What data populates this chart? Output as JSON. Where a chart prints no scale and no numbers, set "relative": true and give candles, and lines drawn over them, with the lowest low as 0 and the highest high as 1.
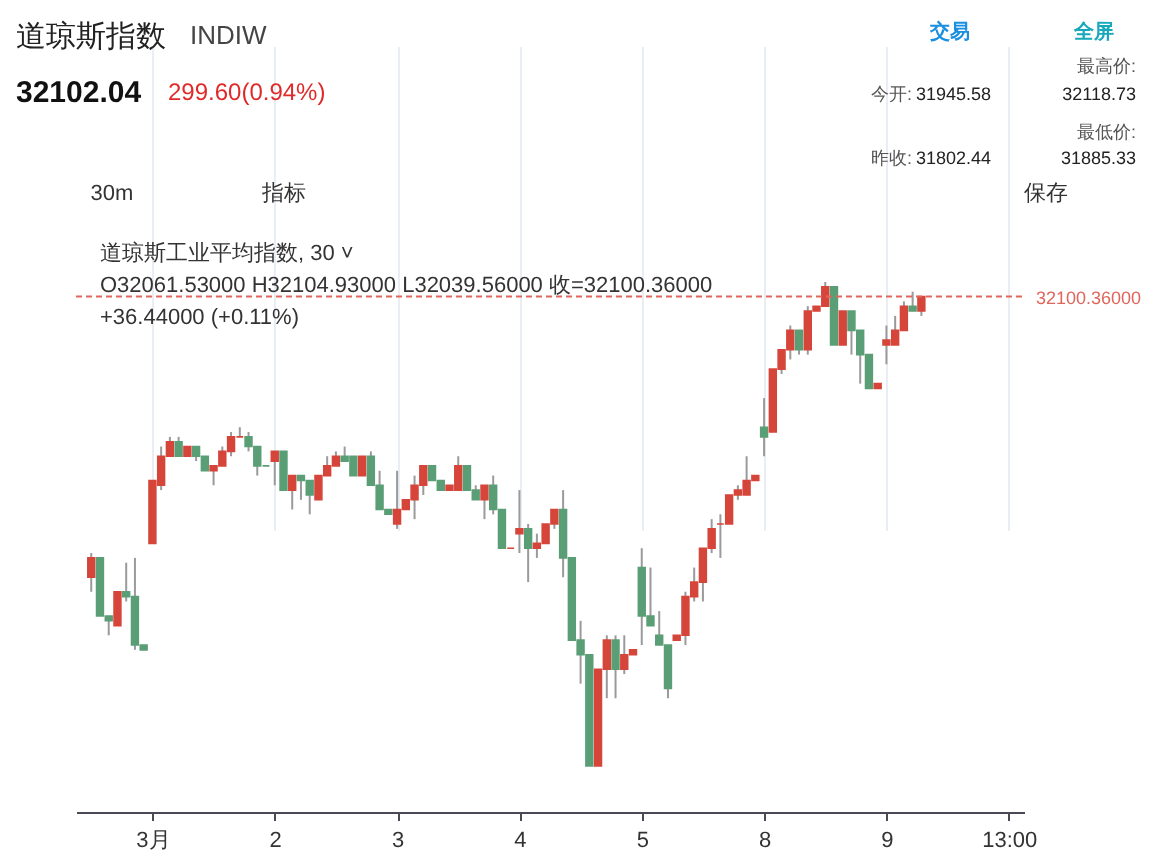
{
  "chart_data": {
    "type": "candlestick",
    "title": "道琼斯指数",
    "subtitle": "INDIW",
    "relative": true,
    "grid": "x",
    "categories": [
      null,
      null,
      null,
      null,
      null,
      null,
      null,
      "3月",
      null,
      null,
      null,
      null,
      null,
      null,
      null,
      null,
      null,
      null,
      null,
      null,
      null,
      "2",
      null,
      null,
      null,
      null,
      null,
      null,
      null,
      null,
      null,
      null,
      null,
      null,
      null,
      "3",
      null,
      null,
      null,
      null,
      null,
      null,
      null,
      null,
      null,
      null,
      null,
      null,
      null,
      "4",
      null,
      null,
      null,
      null,
      null,
      null,
      null,
      null,
      null,
      null,
      null,
      null,
      null,
      "5",
      null,
      null,
      null,
      null,
      null,
      null,
      null,
      null,
      null,
      null,
      null,
      null,
      null,
      "8",
      null,
      null,
      null,
      null,
      null,
      null,
      null,
      null,
      null,
      null,
      null,
      null,
      null,
      "9",
      null,
      null,
      null,
      null,
      null,
      null,
      null,
      null,
      null,
      null,
      null,
      null,
      null,
      "13:00"
    ],
    "ohlc": [
      [
        0.39,
        0.44,
        0.36,
        0.43
      ],
      [
        0.43,
        0.43,
        0.31,
        0.31
      ],
      [
        0.31,
        0.31,
        0.27,
        0.3
      ],
      [
        0.29,
        0.36,
        0.29,
        0.36
      ],
      [
        0.36,
        0.42,
        0.34,
        0.35
      ],
      [
        0.35,
        0.43,
        0.24,
        0.25
      ],
      [
        0.25,
        0.25,
        0.24,
        0.24
      ],
      [
        0.46,
        0.59,
        0.46,
        0.59
      ],
      [
        0.58,
        0.66,
        0.57,
        0.64
      ],
      [
        0.64,
        0.68,
        0.64,
        0.67
      ],
      [
        0.67,
        0.68,
        0.64,
        0.64
      ],
      [
        0.64,
        0.66,
        0.64,
        0.66
      ],
      [
        0.66,
        0.66,
        0.63,
        0.64
      ],
      [
        0.64,
        0.64,
        0.61,
        0.61
      ],
      [
        0.61,
        0.62,
        0.58,
        0.62
      ],
      [
        0.62,
        0.66,
        0.62,
        0.65
      ],
      [
        0.65,
        0.69,
        0.64,
        0.68
      ],
      [
        0.68,
        0.7,
        0.68,
        0.68
      ],
      [
        0.68,
        0.69,
        0.65,
        0.66
      ],
      [
        0.66,
        0.66,
        0.6,
        0.62
      ],
      [
        0.62,
        0.62,
        0.62,
        0.62
      ],
      [
        0.63,
        0.65,
        0.58,
        0.65
      ],
      [
        0.65,
        0.65,
        0.57,
        0.57
      ],
      [
        0.57,
        0.6,
        0.53,
        0.6
      ],
      [
        0.6,
        0.6,
        0.55,
        0.59
      ],
      [
        0.59,
        0.59,
        0.52,
        0.56
      ],
      [
        0.55,
        0.6,
        0.55,
        0.6
      ],
      [
        0.6,
        0.64,
        0.6,
        0.62
      ],
      [
        0.62,
        0.65,
        0.62,
        0.64
      ],
      [
        0.64,
        0.66,
        0.63,
        0.63
      ],
      [
        0.64,
        0.64,
        0.6,
        0.6
      ],
      [
        0.6,
        0.64,
        0.6,
        0.64
      ],
      [
        0.64,
        0.65,
        0.58,
        0.58
      ],
      [
        0.58,
        0.61,
        0.53,
        0.53
      ],
      [
        0.53,
        0.53,
        0.52,
        0.52
      ],
      [
        0.5,
        0.61,
        0.49,
        0.53
      ],
      [
        0.53,
        0.55,
        0.53,
        0.55
      ],
      [
        0.55,
        0.6,
        0.51,
        0.58
      ],
      [
        0.58,
        0.62,
        0.56,
        0.62
      ],
      [
        0.62,
        0.62,
        0.59,
        0.59
      ],
      [
        0.59,
        0.59,
        0.57,
        0.57
      ],
      [
        0.57,
        0.58,
        0.57,
        0.58
      ],
      [
        0.57,
        0.64,
        0.57,
        0.62
      ],
      [
        0.62,
        0.62,
        0.57,
        0.57
      ],
      [
        0.57,
        0.58,
        0.55,
        0.55
      ],
      [
        0.55,
        0.58,
        0.51,
        0.58
      ],
      [
        0.58,
        0.6,
        0.52,
        0.53
      ],
      [
        0.53,
        0.53,
        0.45,
        0.45
      ],
      [
        0.45,
        0.45,
        0.45,
        0.45
      ],
      [
        0.48,
        0.57,
        0.44,
        0.49
      ],
      [
        0.49,
        0.5,
        0.38,
        0.45
      ],
      [
        0.45,
        0.48,
        0.43,
        0.46
      ],
      [
        0.46,
        0.5,
        0.46,
        0.5
      ],
      [
        0.5,
        0.53,
        0.49,
        0.53
      ],
      [
        0.53,
        0.57,
        0.39,
        0.43
      ],
      [
        0.43,
        0.43,
        0.26,
        0.26
      ],
      [
        0.26,
        0.3,
        0.17,
        0.23
      ],
      [
        0.23,
        0.23,
        0.0,
        0.0
      ],
      [
        0.0,
        0.2,
        0.0,
        0.2
      ],
      [
        0.2,
        0.27,
        0.14,
        0.26
      ],
      [
        0.26,
        0.27,
        0.14,
        0.2
      ],
      [
        0.2,
        0.27,
        0.19,
        0.23
      ],
      [
        0.23,
        0.24,
        0.23,
        0.24
      ],
      [
        0.41,
        0.45,
        0.25,
        0.31
      ],
      [
        0.31,
        0.41,
        0.29,
        0.29
      ],
      [
        0.27,
        0.32,
        0.25,
        0.25
      ],
      [
        0.25,
        0.25,
        0.14,
        0.16
      ],
      [
        0.26,
        0.27,
        0.26,
        0.27
      ],
      [
        0.27,
        0.36,
        0.25,
        0.35
      ],
      [
        0.35,
        0.41,
        0.34,
        0.38
      ],
      [
        0.38,
        0.45,
        0.34,
        0.45
      ],
      [
        0.45,
        0.51,
        0.44,
        0.49
      ],
      [
        0.5,
        0.52,
        0.43,
        0.5
      ],
      [
        0.5,
        0.56,
        0.5,
        0.56
      ],
      [
        0.56,
        0.58,
        0.55,
        0.57
      ],
      [
        0.56,
        0.64,
        0.56,
        0.59
      ],
      [
        0.59,
        0.6,
        0.59,
        0.6
      ],
      [
        0.7,
        0.76,
        0.64,
        0.68
      ],
      [
        0.69,
        0.82,
        0.69,
        0.82
      ],
      [
        0.82,
        0.86,
        0.81,
        0.86
      ],
      [
        0.86,
        0.91,
        0.84,
        0.9
      ],
      [
        0.9,
        0.9,
        0.85,
        0.86
      ],
      [
        0.86,
        0.95,
        0.85,
        0.94
      ],
      [
        0.94,
        0.95,
        0.94,
        0.95
      ],
      [
        0.95,
        1.0,
        0.95,
        0.99
      ],
      [
        0.99,
        0.99,
        0.87,
        0.87
      ],
      [
        0.87,
        0.94,
        0.87,
        0.94
      ],
      [
        0.94,
        0.94,
        0.85,
        0.9
      ],
      [
        0.9,
        0.9,
        0.79,
        0.85
      ],
      [
        0.85,
        0.85,
        0.78,
        0.78
      ],
      [
        0.78,
        0.79,
        0.78,
        0.79
      ],
      [
        0.87,
        0.91,
        0.83,
        0.88
      ],
      [
        0.87,
        0.93,
        0.87,
        0.9
      ],
      [
        0.9,
        0.96,
        0.9,
        0.95
      ],
      [
        0.95,
        0.98,
        0.94,
        0.94
      ],
      [
        0.94,
        0.97,
        0.93,
        0.97
      ],
      null,
      null,
      null,
      null,
      null,
      null,
      null,
      null,
      null,
      null
    ],
    "colors": [
      "#d6453a",
      "#5a9e76",
      "#5a9e76",
      "#d6453a",
      "#5a9e76",
      "#5a9e76",
      "#5a9e76",
      "#d6453a",
      "#d6453a",
      "#d6453a",
      "#5a9e76",
      "#d6453a",
      "#5a9e76",
      "#5a9e76",
      "#d6453a",
      "#d6453a",
      "#d6453a",
      "#d6453a",
      "#5a9e76",
      "#5a9e76",
      "#5a9e76",
      "#d6453a",
      "#5a9e76",
      "#d6453a",
      "#5a9e76",
      "#5a9e76",
      "#d6453a",
      "#d6453a",
      "#d6453a",
      "#5a9e76",
      "#5a9e76",
      "#d6453a",
      "#5a9e76",
      "#5a9e76",
      "#5a9e76",
      "#d6453a",
      "#d6453a",
      "#d6453a",
      "#d6453a",
      "#5a9e76",
      "#5a9e76",
      "#d6453a",
      "#d6453a",
      "#5a9e76",
      "#5a9e76",
      "#d6453a",
      "#5a9e76",
      "#5a9e76",
      "#d6453a",
      "#d6453a",
      "#5a9e76",
      "#d6453a",
      "#d6453a",
      "#d6453a",
      "#5a9e76",
      "#5a9e76",
      "#5a9e76",
      "#5a9e76",
      "#d6453a",
      "#d6453a",
      "#5a9e76",
      "#d6453a",
      "#d6453a",
      "#5a9e76",
      "#5a9e76",
      "#5a9e76",
      "#5a9e76",
      "#d6453a",
      "#d6453a",
      "#d6453a",
      "#d6453a",
      "#d6453a",
      "#d6453a",
      "#d6453a",
      "#d6453a",
      "#d6453a",
      "#d6453a",
      "#5a9e76",
      "#d6453a",
      "#d6453a",
      "#d6453a",
      "#5a9e76",
      "#d6453a",
      "#d6453a",
      "#d6453a",
      "#5a9e76",
      "#d6453a",
      "#5a9e76",
      "#5a9e76",
      "#5a9e76",
      "#d6453a",
      "#d6453a",
      "#d6453a",
      "#d6453a",
      "#5a9e76",
      "#d6453a",
      null,
      null,
      null,
      null,
      null,
      null,
      null,
      null,
      null,
      null
    ],
    "annotations": [
      "32102.04",
      "299.60(0.94%)",
      "今开:",
      "31945.58",
      "最高价:",
      "32118.73",
      "昨收:",
      "31802.44",
      "最低价:",
      "31885.33",
      "交易",
      "全屏",
      "30m",
      "指标",
      "保存",
      "道琼斯工业平均指数, 30 ˅",
      "O32061.53000 H32104.93000 L32039.56000 收=32100.36000",
      "+36.44000 (+0.11%)",
      "32100.36000"
    ],
    "ref_lines": [
      {
        "axis": "y",
        "value": 0.97,
        "color": "#e0665c",
        "line_style": "dashed"
      }
    ]
  }
}
